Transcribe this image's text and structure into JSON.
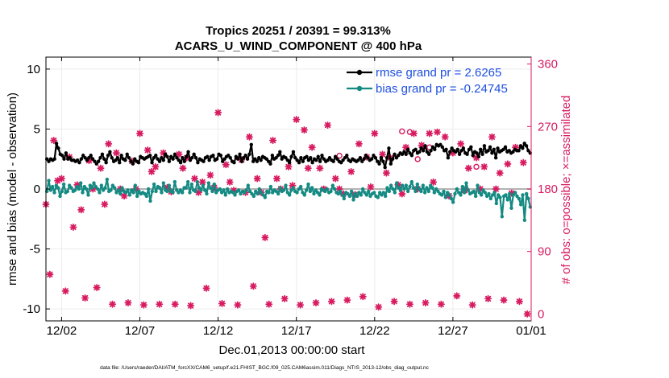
{
  "chart_data": {
    "type": "line",
    "title_line1": "Tropics 20251 / 20391 = 99.313%",
    "title_line2": "ACARS_U_WIND_COMPONENT @ 400 hPa",
    "xlabel": "Dec.01,2013 00:00:00 start",
    "ylabel_left": "rmse and bias (model - observation)",
    "ylabel_right": "# of obs: o=possible; ×=assimilated",
    "footnote": "data file: /Users/raeder/DAI/ATM_forcXX/CAM6_setup/f.e21.FHIST_BGC.f09_025.CAM6assim.011/Diags_NTrS_2013-12/obs_diag_output.nc",
    "xlim": [
      0,
      31
    ],
    "ylim_left": [
      -11,
      11
    ],
    "ylim_right": [
      -10,
      370
    ],
    "x_ticks": [
      1,
      6,
      11,
      16,
      21,
      26,
      31
    ],
    "x_tick_labels": [
      "12/02",
      "12/07",
      "12/12",
      "12/17",
      "12/22",
      "12/27",
      "01/01"
    ],
    "y_ticks_left": [
      10,
      5,
      0,
      -5,
      -10
    ],
    "y_tick_labels_left": [
      "10",
      "5",
      "0",
      "-5",
      "-10"
    ],
    "y_ticks_right": [
      360,
      270,
      180,
      90,
      0
    ],
    "y_tick_labels_right": [
      "360",
      "270",
      "180",
      "90",
      "0"
    ],
    "colors": {
      "rmse": "#000000",
      "bias": "#138a82",
      "obs": "#d81b60",
      "legend_text": "#1f4fe0",
      "zero_line": "#b3b3b3",
      "grid": "#ececec"
    },
    "legend": [
      {
        "label": "rmse grand pr = 2.6265",
        "series": "rmse"
      },
      {
        "label": "bias grand pr = -0.24745",
        "series": "bias"
      }
    ],
    "series": [
      {
        "name": "rmse",
        "axis": "left",
        "values": [
          2.5,
          2.3,
          2.5,
          2.4,
          2.5,
          3.8,
          3.4,
          2.9,
          2.8,
          2.5,
          3.0,
          2.5,
          2.6,
          2.4,
          2.4,
          2.3,
          2.4,
          2.2,
          2.5,
          2.8,
          2.6,
          2.4,
          2.6,
          2.8,
          2.5,
          2.3,
          2.1,
          2.3,
          2.6,
          2.9,
          2.5,
          2.2,
          2.8,
          3.1,
          2.6,
          2.3,
          2.4,
          2.6,
          2.2,
          2.8,
          2.5,
          2.4,
          2.9,
          2.6,
          2.3,
          2.1,
          2.5,
          2.3,
          2.2,
          2.7,
          2.6,
          2.5,
          2.6,
          2.7,
          2.8,
          2.2,
          2.6,
          2.8,
          2.5,
          2.3,
          2.6,
          2.4,
          2.9,
          2.7,
          2.3,
          2.7,
          2.5,
          2.9,
          2.6,
          2.4,
          2.2,
          2.6,
          2.3,
          2.7,
          3.1,
          2.4,
          2.6,
          2.9,
          2.6,
          2.2,
          2.5,
          2.4,
          2.3,
          2.6,
          2.7,
          2.4,
          2.7,
          2.8,
          2.4,
          2.5,
          2.9,
          2.8,
          2.3,
          2.5,
          2.7,
          2.8,
          2.6,
          2.3,
          2.2,
          2.7,
          2.5,
          2.9,
          2.3,
          2.6,
          2.8,
          2.5,
          2.9,
          3.7,
          2.3,
          2.5,
          2.3,
          2.6,
          2.4,
          2.7,
          2.6,
          2.5,
          2.3,
          2.1,
          2.8,
          2.5,
          2.6,
          2.8,
          3.1,
          2.5,
          2.7,
          2.6,
          2.4,
          2.2,
          2.7,
          3.1,
          2.6,
          2.4,
          2.2,
          2.6,
          2.3,
          2.6,
          2.7,
          2.4,
          2.6,
          2.2,
          2.5,
          2.4,
          2.7,
          2.3,
          2.8,
          2.5,
          2.3,
          2.4,
          2.6,
          2.4,
          2.3,
          2.7,
          2.5,
          2.3,
          2.2,
          2.4,
          2.6,
          2.8,
          2.4,
          2.3,
          2.5,
          2.4,
          2.3,
          2.4,
          2.6,
          2.3,
          2.5,
          2.8,
          2.6,
          2.4,
          2.5,
          2.8,
          2.6,
          2.3,
          2.1,
          2.6,
          2.3,
          1.8,
          2.6,
          3.4,
          2.1,
          2.5,
          2.9,
          2.6,
          2.8,
          3.0,
          2.9,
          3.1,
          2.9,
          3.3,
          3.0,
          2.8,
          3.2,
          3.3,
          3.0,
          3.1,
          3.4,
          3.2,
          3.6,
          3.1,
          2.9,
          3.2,
          3.5,
          3.3,
          3.7,
          3.6,
          3.7,
          3.5,
          3.2,
          3.3,
          2.6,
          3.1,
          3.4,
          3.2,
          3.1,
          3.3,
          2.9,
          3.2,
          3.4,
          3.0,
          2.9,
          3.3,
          3.5,
          2.8,
          3.1,
          3.0,
          2.7,
          3.3,
          2.9,
          3.6,
          3.1,
          3.2,
          3.5,
          3.0,
          3.3,
          2.6,
          3.4,
          3.1,
          3.2,
          3.3,
          3.5,
          3.1,
          3.2,
          3.0,
          3.1,
          3.3,
          3.2,
          3.2,
          3.6,
          3.4,
          3.8,
          3.6,
          3.2,
          3.0
        ]
      },
      {
        "name": "bias",
        "axis": "left",
        "values": [
          -0.2,
          0.7,
          -0.1,
          0.2,
          -0.3,
          0.3,
          0.1,
          -0.6,
          -0.2,
          0.4,
          -0.3,
          -0.2,
          0.3,
          0.1,
          -0.2,
          -0.1,
          0.2,
          0.0,
          0.5,
          -0.3,
          0.2,
          0.0,
          -0.5,
          0.3,
          0.1,
          0.5,
          0.2,
          0.0,
          -0.3,
          0.3,
          -0.1,
          0.1,
          0.8,
          -0.2,
          -0.1,
          0.3,
          0.1,
          -0.3,
          -0.1,
          -0.4,
          0.1,
          -0.2,
          -0.3,
          -0.1,
          -0.5,
          -0.1,
          -0.3,
          0.3,
          -0.6,
          -0.2,
          -0.4,
          -0.3,
          -0.4,
          -0.6,
          0.0,
          -1.0,
          -0.2,
          0.4,
          -0.2,
          0.2,
          0.1,
          -0.3,
          0.5,
          -0.1,
          -0.2,
          0.3,
          -0.2,
          -0.3,
          0.6,
          -0.1,
          -0.3,
          -0.1,
          -0.3,
          0.1,
          0.1,
          0.6,
          -0.3,
          0.4,
          -0.1,
          -0.2,
          0.6,
          0.1,
          -0.1,
          0.3,
          -0.1,
          -0.4,
          0.5,
          0.1,
          -0.2,
          0.4,
          -0.3,
          -0.1,
          0.0,
          -0.3,
          -0.1,
          -0.5,
          0.0,
          -0.3,
          -0.2,
          -0.3,
          -0.5,
          -0.2,
          -0.1,
          -0.4,
          -0.2,
          -0.3,
          -0.1,
          0.3,
          -0.2,
          -0.4,
          -0.6,
          -0.2,
          -0.4,
          0.0,
          -0.3,
          -0.5,
          -0.7,
          -0.2,
          -0.3,
          0.2,
          -0.3,
          -0.1,
          -0.2,
          -0.4,
          0.1,
          -0.2,
          -0.1,
          0.3,
          -0.3,
          -0.5,
          -0.1,
          0.1,
          -0.2,
          -0.3,
          0.0,
          0.2,
          -0.3,
          -0.5,
          -0.1,
          0.4,
          -0.2,
          0.1,
          -0.4,
          -0.1,
          -0.3,
          -0.5,
          0.0,
          -0.1,
          -0.2,
          0.0,
          -0.3,
          -0.2,
          0.3,
          0.0,
          -0.3,
          -0.4,
          -0.2,
          -0.5,
          -0.8,
          -0.3,
          -0.4,
          -0.6,
          -0.2,
          -0.9,
          -0.4,
          -0.6,
          -0.3,
          -0.5,
          0.0,
          -0.3,
          -0.5,
          -0.2,
          -0.6,
          -0.4,
          -0.3,
          -0.6,
          -0.7,
          -0.3,
          -0.5,
          -0.3,
          -0.6,
          0.1,
          -0.2,
          0.3,
          0.0,
          -0.3,
          0.5,
          0.1,
          -0.1,
          0.3,
          0.0,
          0.3,
          -0.2,
          0.2,
          0.6,
          0.1,
          -0.2,
          0.4,
          0.0,
          -0.2,
          0.3,
          -0.3,
          0.1,
          -0.2,
          0.3,
          0.1,
          -0.3,
          0.0,
          -0.2,
          -0.4,
          -0.5,
          -0.2,
          -0.7,
          -0.3,
          -0.5,
          -0.8,
          -1.1,
          -0.4,
          0.0,
          -0.3,
          -0.5,
          0.2,
          -0.3,
          0.5,
          -0.1,
          -0.4,
          -0.3,
          -0.2,
          -0.6,
          0.3,
          -0.3,
          -0.5,
          -0.1,
          -0.3,
          -0.6,
          -0.4,
          -0.8,
          -0.5,
          -0.3,
          -1.2,
          -0.5,
          -0.7,
          -2.3,
          -0.6,
          -0.5,
          -0.9,
          -0.4,
          -1.6,
          -0.5,
          -0.3,
          -0.6,
          -0.8,
          -1.3,
          -0.5,
          -2.6,
          -0.4,
          -0.8,
          -1.5
        ]
      },
      {
        "name": "obs_assimilated",
        "axis": "right",
        "x": [
          0.0,
          0.25,
          0.5,
          0.75,
          1.0,
          1.25,
          1.5,
          1.75,
          2.0,
          2.25,
          2.5,
          2.75,
          3.0,
          3.25,
          3.5,
          3.75,
          4.0,
          4.25,
          4.5,
          4.75,
          5.0,
          5.25,
          5.5,
          5.75,
          6.0,
          6.25,
          6.5,
          6.75,
          7.0,
          7.25,
          7.5,
          7.75,
          8.0,
          8.25,
          8.5,
          8.75,
          9.0,
          9.25,
          9.5,
          9.75,
          10.0,
          10.25,
          10.5,
          10.75,
          11.0,
          11.25,
          11.5,
          11.75,
          12.0,
          12.25,
          12.5,
          12.75,
          13.0,
          13.25,
          13.5,
          13.75,
          14.0,
          14.25,
          14.5,
          14.75,
          15.0,
          15.25,
          15.5,
          15.75,
          16.0,
          16.25,
          16.5,
          16.75,
          17.0,
          17.25,
          17.5,
          17.75,
          18.0,
          18.25,
          18.5,
          18.75,
          19.0,
          19.25,
          19.5,
          19.75,
          20.0,
          20.25,
          20.5,
          20.75,
          21.0,
          21.25,
          21.5,
          21.75,
          22.0,
          22.25,
          22.5,
          22.75,
          23.0,
          23.25,
          23.5,
          23.75,
          24.0,
          24.25,
          24.5,
          24.75,
          25.0,
          25.25,
          25.5,
          25.75,
          26.0,
          26.25,
          26.5,
          26.75,
          27.0,
          27.25,
          27.5,
          27.75,
          28.0,
          28.25,
          28.5,
          28.75,
          29.0,
          29.25,
          29.5,
          29.75,
          30.0,
          30.25,
          30.5,
          30.75
        ],
        "values": [
          158,
          57,
          250,
          192,
          195,
          33,
          226,
          125,
          186,
          150,
          23,
          221,
          180,
          38,
          210,
          158,
          245,
          14,
          232,
          180,
          170,
          16,
          220,
          180,
          260,
          13,
          236,
          205,
          212,
          14,
          232,
          182,
          176,
          14,
          230,
          210,
          225,
          12,
          195,
          175,
          190,
          37,
          200,
          182,
          290,
          15,
          215,
          190,
          178,
          13,
          222,
          175,
          255,
          40,
          195,
          175,
          110,
          14,
          250,
          195,
          180,
          22,
          212,
          185,
          280,
          13,
          265,
          210,
          240,
          16,
          210,
          180,
          272,
          18,
          195,
          180,
          173,
          20,
          205,
          172,
          245,
          25,
          226,
          183,
          260,
          10,
          230,
          203,
          225,
          18,
          186,
          173,
          240,
          14,
          260,
          180,
          243,
          16,
          260,
          190,
          262,
          14,
          255,
          170,
          232,
          26,
          245,
          178,
          210,
          13,
          225,
          180,
          212,
          22,
          255,
          180,
          203,
          20,
          216,
          174,
          240,
          18,
          218,
          0
        ]
      },
      {
        "name": "obs_possible",
        "axis": "right",
        "x": [
          2.75,
          18.75,
          22.75,
          23.25,
          23.75,
          24.5,
          27.5
        ],
        "values": [
          222,
          228,
          263,
          262,
          223,
          240,
          212
        ]
      }
    ]
  }
}
